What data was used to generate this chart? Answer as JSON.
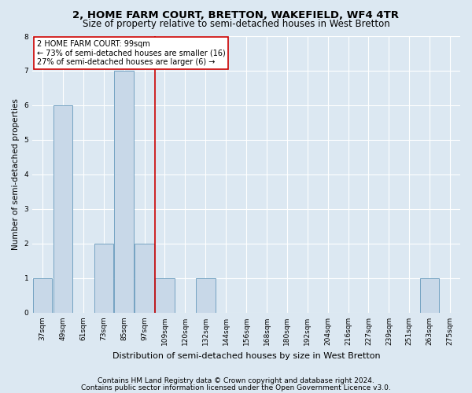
{
  "title1": "2, HOME FARM COURT, BRETTON, WAKEFIELD, WF4 4TR",
  "title2": "Size of property relative to semi-detached houses in West Bretton",
  "xlabel": "Distribution of semi-detached houses by size in West Bretton",
  "ylabel": "Number of semi-detached properties",
  "footnote1": "Contains HM Land Registry data © Crown copyright and database right 2024.",
  "footnote2": "Contains public sector information licensed under the Open Government Licence v3.0.",
  "annotation_line1": "2 HOME FARM COURT: 99sqm",
  "annotation_line2": "← 73% of semi-detached houses are smaller (16)",
  "annotation_line3": "27% of semi-detached houses are larger (6) →",
  "subject_size": 99,
  "bar_color": "#c8d8e8",
  "bar_edge_color": "#6699bb",
  "subject_line_color": "#cc0000",
  "annotation_box_edgecolor": "#cc0000",
  "annotation_fill_color": "#ffffff",
  "categories": [
    "37sqm",
    "49sqm",
    "61sqm",
    "73sqm",
    "85sqm",
    "97sqm",
    "109sqm",
    "120sqm",
    "132sqm",
    "144sqm",
    "156sqm",
    "168sqm",
    "180sqm",
    "192sqm",
    "204sqm",
    "216sqm",
    "227sqm",
    "239sqm",
    "251sqm",
    "263sqm",
    "275sqm"
  ],
  "values": [
    1,
    6,
    0,
    2,
    7,
    2,
    1,
    0,
    1,
    0,
    0,
    0,
    0,
    0,
    0,
    0,
    0,
    0,
    0,
    1,
    0
  ],
  "ylim": [
    0,
    8
  ],
  "yticks": [
    0,
    1,
    2,
    3,
    4,
    5,
    6,
    7,
    8
  ],
  "background_color": "#dce8f2",
  "plot_background_color": "#dce8f2",
  "grid_color": "#ffffff",
  "title1_fontsize": 9.5,
  "title2_fontsize": 8.5,
  "xlabel_fontsize": 8,
  "ylabel_fontsize": 7.5,
  "tick_fontsize": 6.5,
  "annotation_fontsize": 7,
  "footnote_fontsize": 6.5
}
